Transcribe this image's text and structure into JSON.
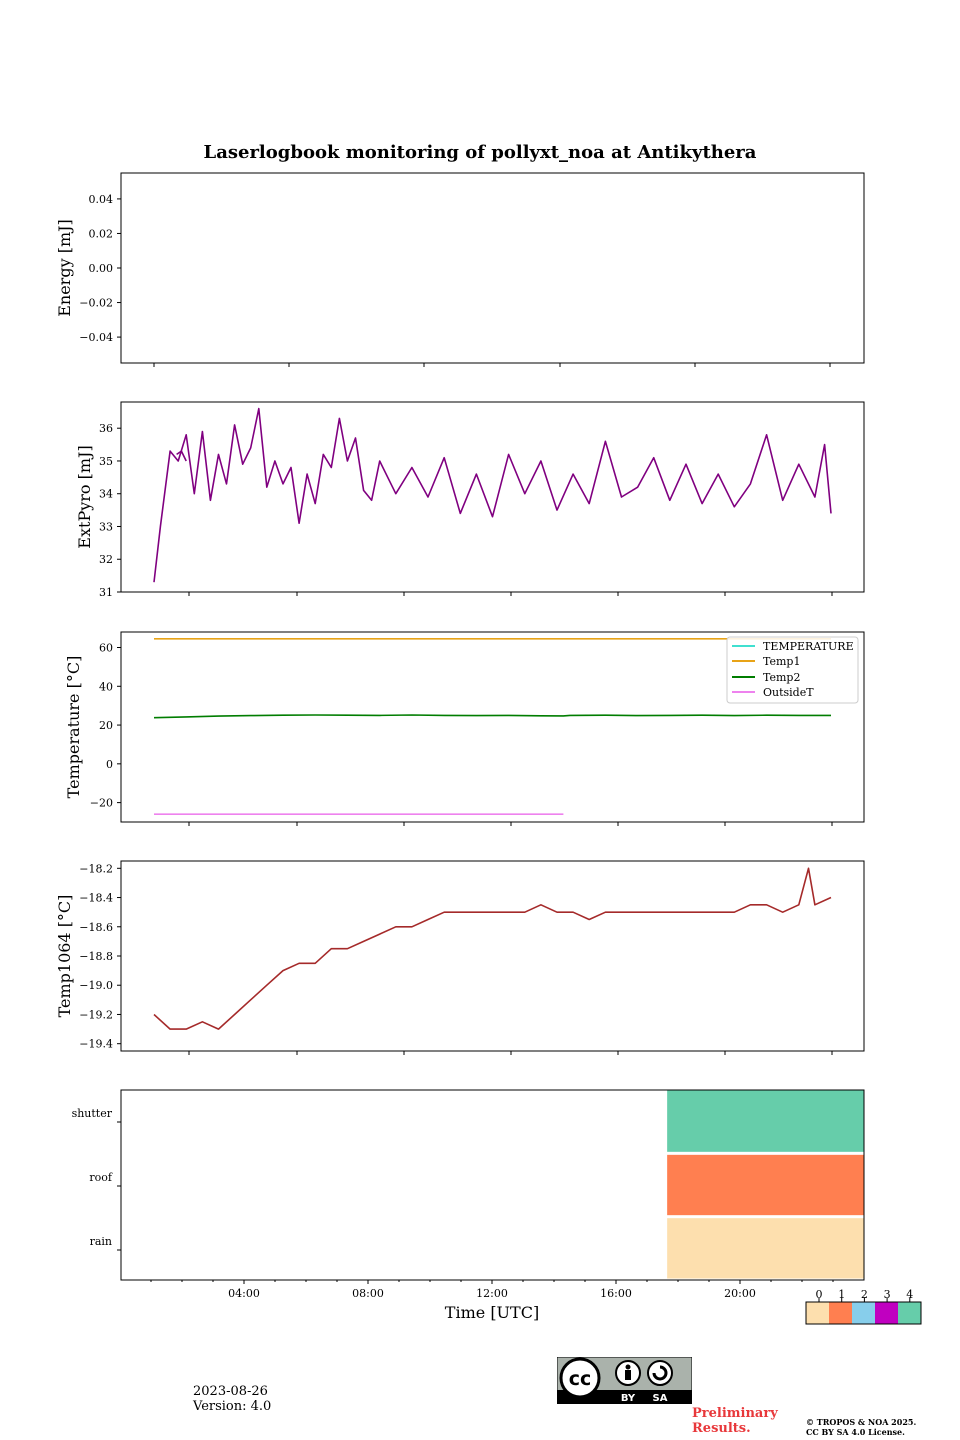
{
  "chart_data": {
    "type": "line",
    "title": "Laserlogbook monitoring of pollyxt_noa at Antikythera",
    "xlabel": "Time [UTC]",
    "x_ticks": [
      "04:00",
      "08:00",
      "12:00",
      "16:00",
      "20:00"
    ],
    "panels": [
      {
        "id": "energy",
        "ylabel": "Energy [mJ]",
        "ylim": [
          -0.055,
          0.055
        ],
        "yticks": [
          -0.04,
          -0.02,
          0.0,
          0.02,
          0.04
        ],
        "ytick_labels": [
          "−0.04",
          "−0.02",
          "0.00",
          "0.02",
          "0.04"
        ],
        "series": []
      },
      {
        "id": "extpyro",
        "ylabel": "ExtPyro [mJ]",
        "ylim": [
          31,
          36.8
        ],
        "yticks": [
          31,
          32,
          33,
          34,
          35,
          36
        ],
        "ytick_labels": [
          "31",
          "32",
          "33",
          "34",
          "35",
          "36"
        ],
        "series": [
          {
            "color": "#800080",
            "x": [
              1.0,
              1.2,
              1.5,
              1.75,
              2.0,
              2.25,
              2.5,
              2.75,
              3.0,
              3.25,
              3.5,
              3.75,
              4.0,
              4.25,
              4.5,
              4.75,
              5.0,
              5.25,
              5.5,
              5.75,
              6.0,
              6.25,
              6.5,
              6.75,
              7.0,
              7.25,
              7.5,
              7.75,
              8.0,
              8.5,
              9.0,
              9.5,
              10.0,
              10.5,
              11.0,
              11.5,
              12.0,
              12.5,
              13.0,
              13.5,
              14.0,
              14.5,
              15.0,
              15.5,
              16.0,
              16.5,
              17.0,
              17.5,
              18.0,
              18.5,
              19.0,
              19.5,
              20.0,
              20.5,
              21.0,
              21.5,
              21.8,
              22.0
            ],
            "values": [
              31.3,
              33.0,
              35.3,
              35.0,
              35.8,
              34.0,
              35.9,
              33.8,
              35.2,
              34.3,
              36.1,
              34.9,
              35.4,
              36.6,
              34.2,
              35.0,
              34.3,
              34.8,
              33.1,
              34.6,
              33.7,
              35.2,
              34.8,
              36.3,
              35.0,
              35.7,
              34.1,
              33.8,
              35.0,
              34.0,
              34.8,
              33.9,
              35.1,
              33.4,
              34.6,
              33.3,
              35.2,
              34.0,
              35.0,
              33.5,
              34.6,
              33.7,
              35.6,
              33.9,
              34.2,
              35.1,
              33.8,
              34.9,
              33.7,
              34.6,
              33.6,
              34.3,
              35.8,
              33.8,
              34.9,
              33.9,
              35.5,
              33.4
            ]
          },
          {
            "color": "#800080",
            "x": [
              1.7,
              1.85,
              2.0
            ],
            "values": [
              35.2,
              35.3,
              35.0
            ]
          }
        ]
      },
      {
        "id": "temperature",
        "ylabel": "Temperature [°C]",
        "ylim": [
          -30,
          68
        ],
        "yticks": [
          -20,
          0,
          20,
          40,
          60
        ],
        "ytick_labels": [
          "−20",
          "0",
          "20",
          "40",
          "60"
        ],
        "legend_loc": "upper right",
        "series": [
          {
            "name": "TEMPERATURE",
            "color": "#40e0d0",
            "x": [],
            "values": []
          },
          {
            "name": "Temp1",
            "color": "#e8a317",
            "x": [
              1.0,
              22.0
            ],
            "values": [
              64.5,
              64.5
            ]
          },
          {
            "name": "Temp2",
            "color": "#007d00",
            "x": [
              1.0,
              2.0,
              3.0,
              4.0,
              5.0,
              6.0,
              7.0,
              8.0,
              9.0,
              10.0,
              11.0,
              12.0,
              13.0,
              13.7,
              13.9,
              15.0,
              16.0,
              17.0,
              18.0,
              19.0,
              20.0,
              21.0,
              22.0
            ],
            "values": [
              23.8,
              24.2,
              24.6,
              24.9,
              25.1,
              25.2,
              25.1,
              25.0,
              25.2,
              25.0,
              24.9,
              25.0,
              24.8,
              24.7,
              25.0,
              25.1,
              24.9,
              25.0,
              25.1,
              24.9,
              25.1,
              25.0,
              25.0
            ]
          },
          {
            "name": "OutsideT",
            "color": "#ee82ee",
            "x": [
              1.0,
              13.7,
              13.8,
              16.3,
              16.4,
              22.0
            ],
            "values": [
              -26.0,
              -26.0,
              null,
              -26.0,
              null,
              -26.0
            ]
          }
        ]
      },
      {
        "id": "temp1064",
        "ylabel": "Temp1064 [°C]",
        "ylim": [
          -19.45,
          -18.15
        ],
        "yticks": [
          -19.4,
          -19.2,
          -19.0,
          -18.8,
          -18.6,
          -18.4,
          -18.2
        ],
        "ytick_labels": [
          "−19.4",
          "−19.2",
          "−19.0",
          "−18.8",
          "−18.6",
          "−18.4",
          "−18.2"
        ],
        "series": [
          {
            "color": "#a52a2a",
            "x": [
              1.0,
              1.5,
              2.0,
              2.5,
              3.0,
              3.5,
              4.0,
              4.5,
              5.0,
              5.5,
              6.0,
              6.5,
              7.0,
              7.5,
              8.0,
              8.5,
              9.0,
              9.5,
              10.0,
              10.5,
              11.0,
              11.5,
              12.0,
              12.5,
              13.0,
              13.5,
              14.0,
              14.5,
              15.0,
              15.5,
              16.0,
              16.5,
              17.0,
              17.5,
              18.0,
              18.5,
              19.0,
              19.5,
              20.0,
              20.5,
              21.0,
              21.3,
              21.5,
              22.0
            ],
            "values": [
              -19.2,
              -19.3,
              -19.3,
              -19.25,
              -19.3,
              -19.2,
              -19.1,
              -19.0,
              -18.9,
              -18.85,
              -18.85,
              -18.75,
              -18.75,
              -18.7,
              -18.65,
              -18.6,
              -18.6,
              -18.55,
              -18.5,
              -18.5,
              -18.5,
              -18.5,
              -18.5,
              -18.5,
              -18.45,
              -18.5,
              -18.5,
              -18.55,
              -18.5,
              -18.5,
              -18.5,
              -18.5,
              -18.5,
              -18.5,
              -18.5,
              -18.5,
              -18.5,
              -18.45,
              -18.45,
              -18.5,
              -18.45,
              -18.2,
              -18.45,
              -18.4
            ]
          }
        ]
      },
      {
        "id": "status",
        "type": "heatmap",
        "rows": [
          "shutter",
          "roof",
          "rain"
        ],
        "x_start": 17.65,
        "x_end": 24.0,
        "row_values": [
          4,
          1,
          0
        ],
        "colorbar_ticks": [
          "0",
          "1",
          "2",
          "3",
          "4"
        ],
        "colorbar_colors": [
          "#fddfae",
          "#ff7f50",
          "#87ceeb",
          "#c000c0",
          "#66cdaa"
        ]
      }
    ],
    "grid": false
  },
  "footer": {
    "date": "2023-08-26",
    "version": "Version: 4.0",
    "preliminary": [
      "Preliminary",
      "Results."
    ],
    "copyright": [
      "© TROPOS & NOA 2025.",
      "CC BY SA 4.0 License."
    ],
    "license_badge": {
      "cc": "cc",
      "by": "BY",
      "sa": "SA"
    }
  }
}
